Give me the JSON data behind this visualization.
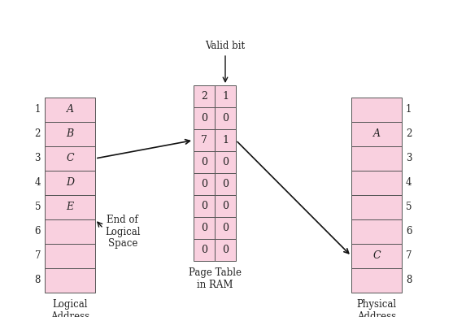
{
  "bg_color": "#ffffff",
  "cell_fill": "#f9d0df",
  "cell_edge": "#555555",
  "logical_labels": [
    "A",
    "B",
    "C",
    "D",
    "E",
    "",
    "",
    ""
  ],
  "logical_row_numbers": [
    "1",
    "2",
    "3",
    "4",
    "5",
    "6",
    "7",
    "8"
  ],
  "page_table_data": [
    [
      "2",
      "1"
    ],
    [
      "0",
      "0"
    ],
    [
      "7",
      "1"
    ],
    [
      "0",
      "0"
    ],
    [
      "0",
      "0"
    ],
    [
      "0",
      "0"
    ],
    [
      "0",
      "0"
    ],
    [
      "0",
      "0"
    ]
  ],
  "physical_labels": [
    "",
    "A",
    "",
    "",
    "",
    "",
    "C",
    ""
  ],
  "physical_row_numbers": [
    "1",
    "2",
    "3",
    "4",
    "5",
    "6",
    "7",
    "8"
  ],
  "title_logical": "Logical\nAddress\nSpace",
  "title_page": "Page Table\nin RAM",
  "title_physical": "Physical\nAddress\nSpace",
  "label_valid_bit": "Valid bit",
  "label_end_logical": "End of\nLogical\nSpace",
  "text_color": "#222222",
  "arrow_color": "#111111",
  "font_size_cell": 9,
  "font_size_label": 8.5,
  "font_size_number": 8.5
}
